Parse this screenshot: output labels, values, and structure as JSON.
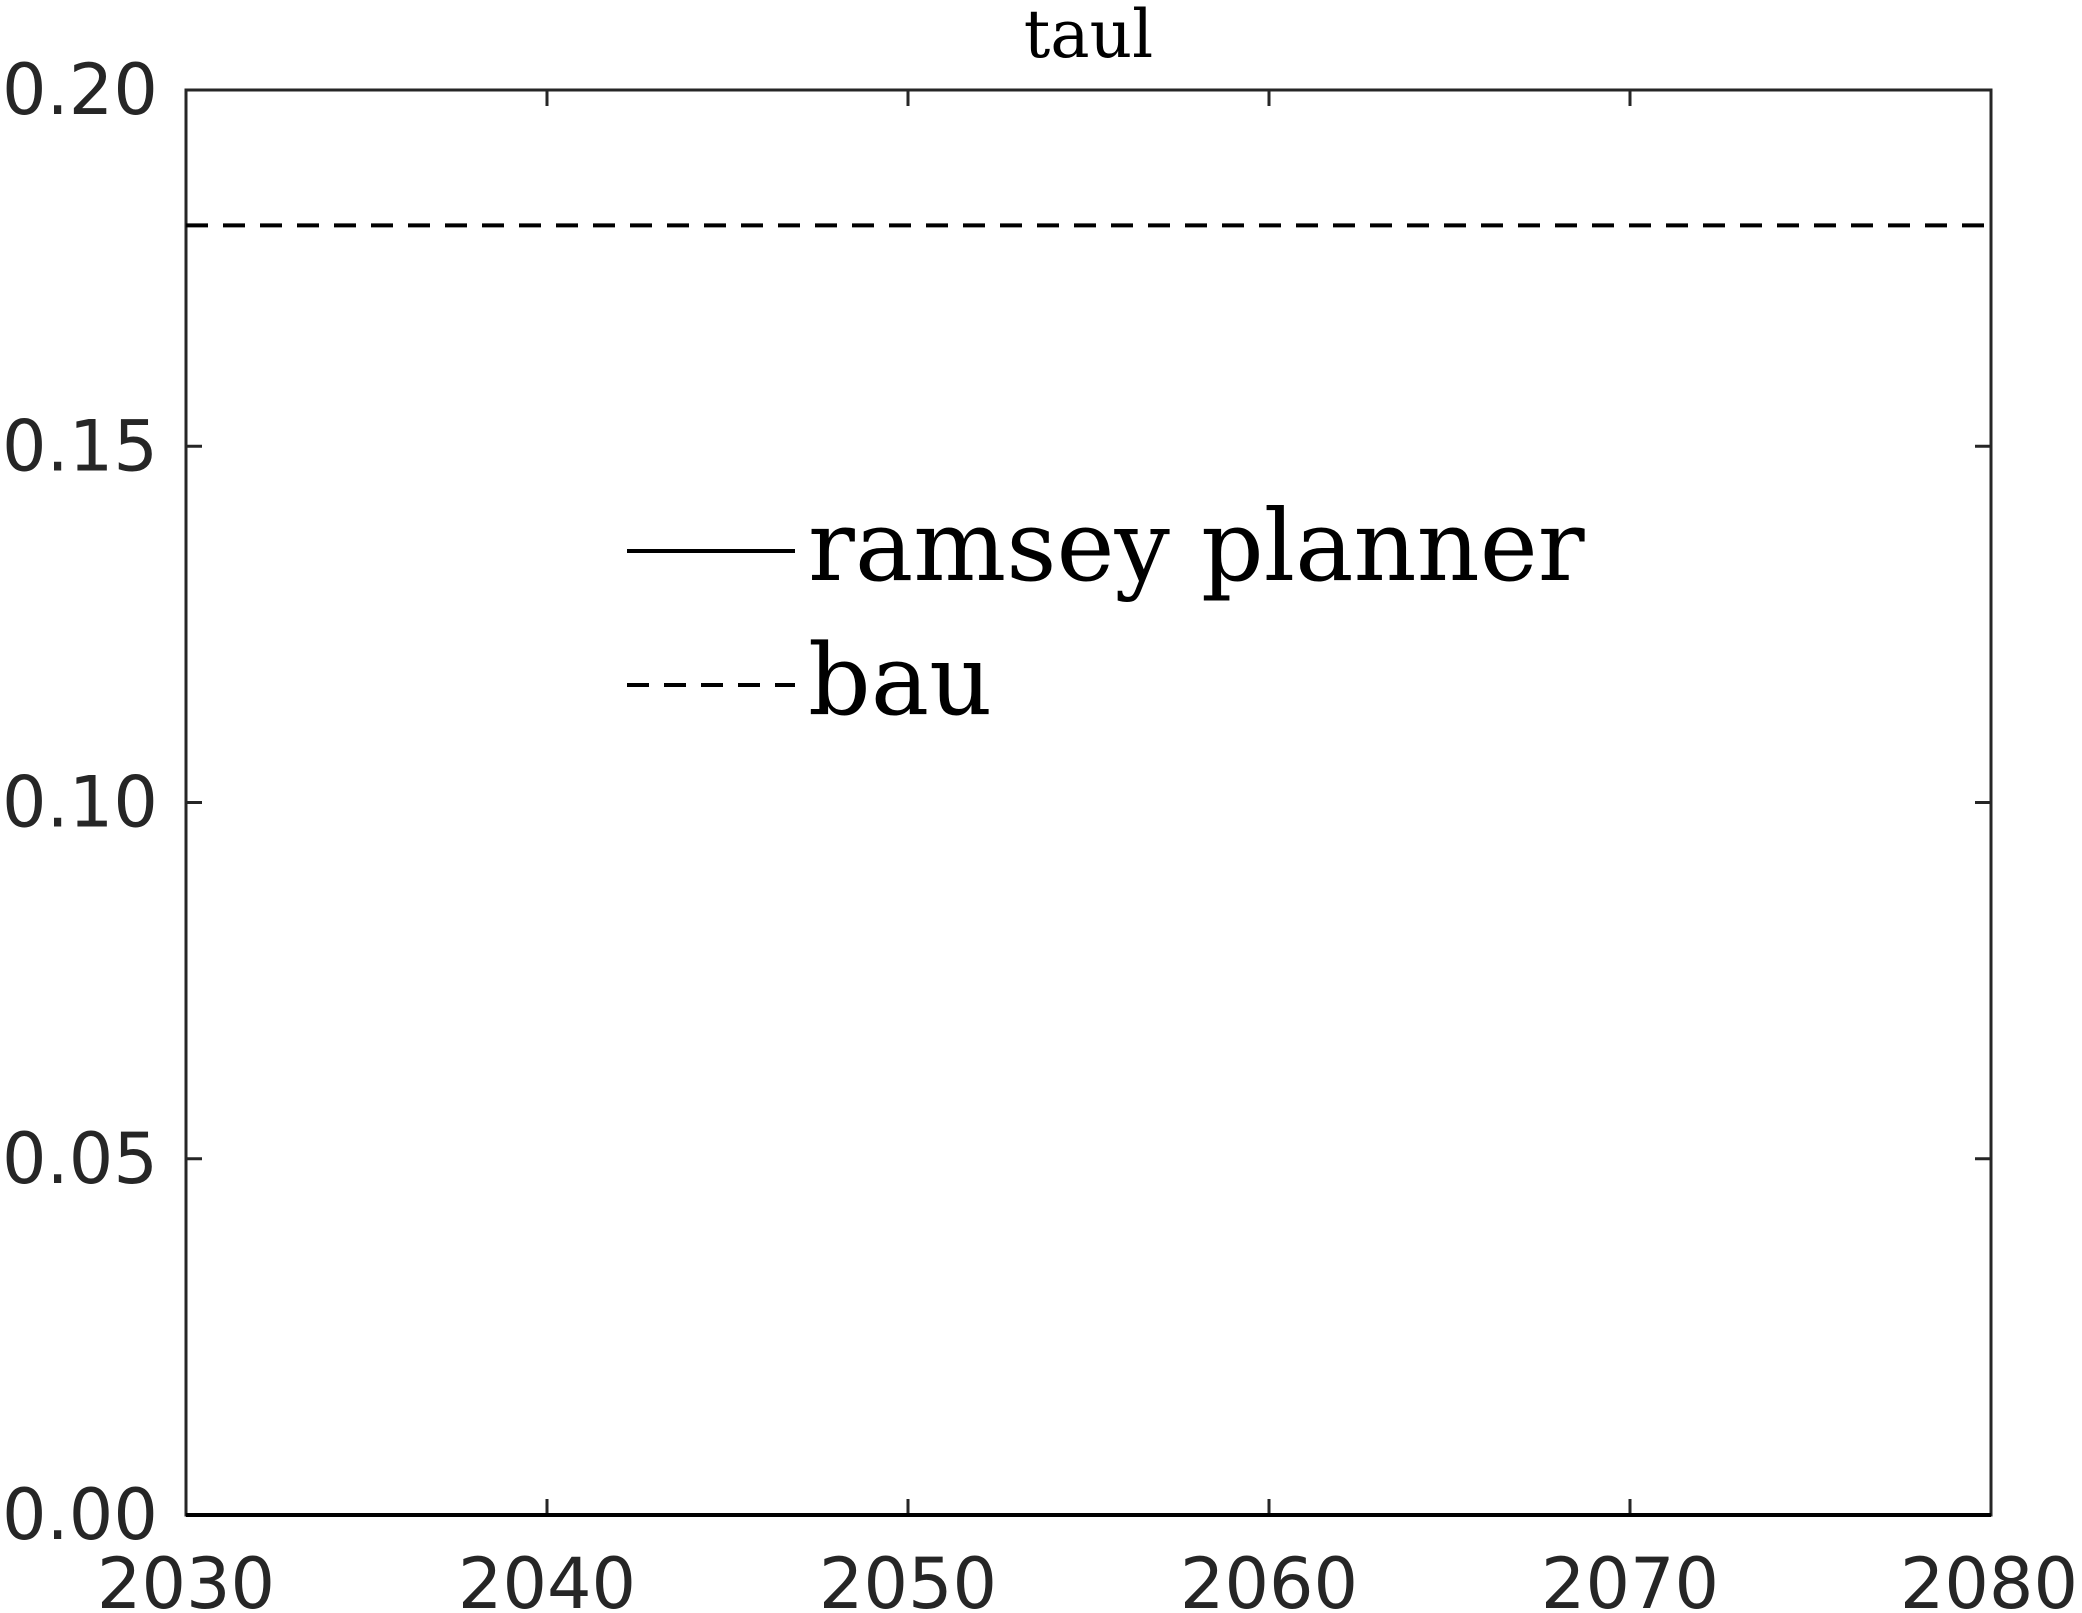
{
  "chart_data": {
    "type": "line",
    "title": "taul",
    "xlabel": "",
    "ylabel": "",
    "xlim": [
      2030,
      2080
    ],
    "ylim": [
      0,
      0.2
    ],
    "xticks": [
      "2030",
      "2040",
      "2050",
      "2060",
      "2070",
      "2080"
    ],
    "yticks": [
      "0.00",
      "0.05",
      "0.10",
      "0.15",
      "0.20"
    ],
    "grid": false,
    "legend_position": "upper-center",
    "series": [
      {
        "name": "ramsey planner",
        "style": "solid",
        "color": "#000000",
        "x": [
          2030,
          2080
        ],
        "y": [
          0,
          0
        ]
      },
      {
        "name": "bau",
        "style": "dashed",
        "color": "#000000",
        "x": [
          2030,
          2080
        ],
        "y": [
          0.181,
          0.181
        ]
      }
    ]
  }
}
